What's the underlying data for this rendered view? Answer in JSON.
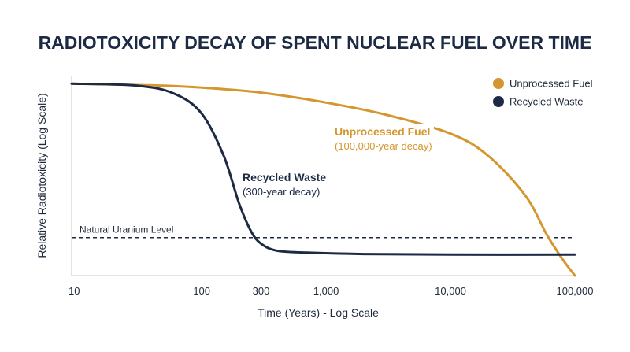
{
  "chart_data": {
    "type": "line",
    "title": "RADIOTOXICITY DECAY OF SPENT NUCLEAR FUEL OVER TIME",
    "xlabel": "Time (Years) - Log Scale",
    "ylabel": "Relative Radiotoxicity (Log Scale)",
    "x_scale": "log",
    "xlim": [
      9,
      100000
    ],
    "ylim": [
      0,
      100
    ],
    "x_ticks": [
      {
        "value": 10,
        "label": "10"
      },
      {
        "value": 100,
        "label": "100"
      },
      {
        "value": 300,
        "label": "300"
      },
      {
        "value": 1000,
        "label": "1,000"
      },
      {
        "value": 10000,
        "label": "10,000"
      },
      {
        "value": 100000,
        "label": "100,000"
      }
    ],
    "legend": {
      "position": "top-right",
      "items": [
        {
          "name": "Unprocessed Fuel",
          "color": "#d4962e"
        },
        {
          "name": "Recycled Waste",
          "color": "#1c2a44"
        }
      ]
    },
    "series": [
      {
        "name": "Unprocessed Fuel",
        "color": "#d4962e",
        "points": [
          [
            9,
            96
          ],
          [
            20,
            95.5
          ],
          [
            50,
            95
          ],
          [
            100,
            94
          ],
          [
            300,
            91.5
          ],
          [
            1000,
            86.5
          ],
          [
            3000,
            80.5
          ],
          [
            10000,
            71
          ],
          [
            20000,
            60
          ],
          [
            40000,
            40
          ],
          [
            60000,
            20
          ],
          [
            80000,
            8
          ],
          [
            100000,
            0
          ]
        ]
      },
      {
        "name": "Recycled Waste",
        "color": "#1c2a44",
        "points": [
          [
            9,
            96
          ],
          [
            30,
            95
          ],
          [
            60,
            91
          ],
          [
            100,
            81
          ],
          [
            150,
            60
          ],
          [
            200,
            36
          ],
          [
            250,
            22
          ],
          [
            300,
            16
          ],
          [
            400,
            12.5
          ],
          [
            700,
            11.5
          ],
          [
            2000,
            10.8
          ],
          [
            10000,
            10.5
          ],
          [
            100000,
            10.5
          ]
        ]
      }
    ],
    "reference_line": {
      "label": "Natural Uranium Level",
      "y": 19
    },
    "annotations": [
      {
        "series": "Recycled Waste",
        "title": "Recycled Waste",
        "subtitle": "(300-year decay)",
        "color": "#1c2a44"
      },
      {
        "series": "Unprocessed Fuel",
        "title": "Unprocessed Fuel",
        "subtitle": "(100,000-year decay)",
        "color": "#d4962e"
      }
    ],
    "marker_line_x": 300,
    "grid": false
  }
}
